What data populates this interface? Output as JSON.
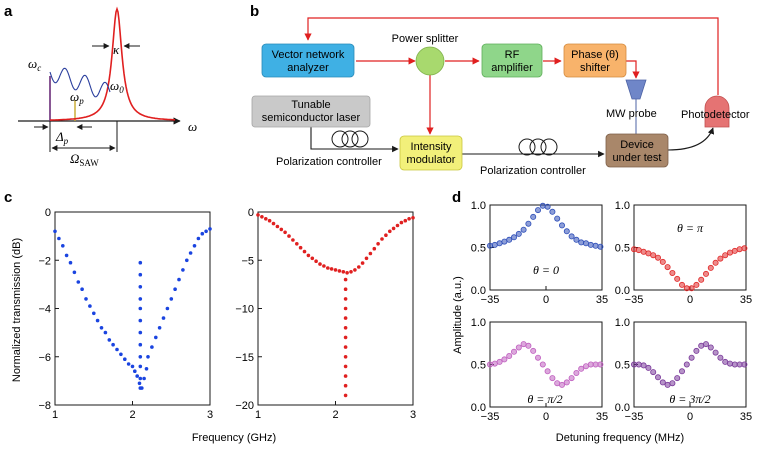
{
  "panels": {
    "a": "a",
    "b": "b",
    "c": "c",
    "d": "d"
  },
  "panel_a": {
    "labels": {
      "kappa": "κ",
      "omega_c": "ω",
      "omega_c_sub": "c",
      "omega_0": "ω",
      "omega_0_sub": "0",
      "omega_p": "ω",
      "omega_p_sub": "p",
      "delta_p": "Δ",
      "delta_p_sub": "p",
      "omega_axis": "ω",
      "omega_saw": "Ω",
      "omega_saw_sub": "SAW"
    },
    "colors": {
      "lorentzian": "#e02020",
      "comb": "#2b3f9e",
      "carrier": "#6a2d7a"
    }
  },
  "panel_b": {
    "vna": "Vector network\nanalyzer",
    "splitter": "Power splitter",
    "rf": "RF\namplifier",
    "phase": "Phase (θ)\nshifter",
    "laser": "Tunable\nsemiconductor laser",
    "pol1": "Polarization controller",
    "modulator": "Intensity\nmodulator",
    "pol2": "Polarization controller",
    "mwprobe": "MW probe",
    "dut": "Device\nunder test",
    "photodetector": "Photodetector",
    "colors": {
      "vna": "#3fb0e4",
      "splitter": "#a8d96e",
      "rf": "#8fd68a",
      "phase": "#f8b36b",
      "laser": "#c9c9c9",
      "modulator": "#f2f07a",
      "dut": "#a9876a",
      "photodetector": "#e57373",
      "probe": "#6f86c8",
      "line_red": "#e02020"
    }
  },
  "panel_c": {
    "ylabel": "Normalized transmission (dB)",
    "xlabel": "Frequency (GHz)"
  },
  "panel_d": {
    "ylabel": "Amplitude (a.u.)",
    "xlabel": "Detuning frequency (MHz)"
  },
  "chart_data": [
    {
      "type": "scatter",
      "id": "c-left",
      "xlim": [
        1,
        3
      ],
      "ylim": [
        -8,
        0
      ],
      "xticks": [
        1,
        2,
        3
      ],
      "yticks": [
        0,
        -2,
        -4,
        -6,
        -8
      ],
      "color": "#1a44e0",
      "series": [
        {
          "x": [
            1.0,
            1.05,
            1.1,
            1.15,
            1.2,
            1.25,
            1.3,
            1.35,
            1.4,
            1.45,
            1.5,
            1.55,
            1.6,
            1.65,
            1.7,
            1.75,
            1.8,
            1.85,
            1.9,
            1.95,
            2.0,
            2.03,
            2.06,
            2.09,
            2.12,
            2.15,
            2.18,
            2.2,
            2.25,
            2.3,
            2.35,
            2.4,
            2.45,
            2.5,
            2.55,
            2.6,
            2.65,
            2.7,
            2.75,
            2.8,
            2.85,
            2.9,
            2.95,
            3.0
          ],
          "y": [
            -0.8,
            -1.1,
            -1.4,
            -1.8,
            -2.1,
            -2.5,
            -2.9,
            -3.2,
            -3.6,
            -3.9,
            -4.2,
            -4.5,
            -4.8,
            -5.0,
            -5.3,
            -5.5,
            -5.7,
            -5.9,
            -6.1,
            -6.3,
            -6.4,
            -6.6,
            -6.8,
            -7.1,
            -7.3,
            -6.9,
            -6.5,
            -6.0,
            -5.6,
            -5.2,
            -4.8,
            -4.4,
            -4.0,
            -3.6,
            -3.2,
            -2.8,
            -2.4,
            -2.0,
            -1.7,
            -1.4,
            -1.1,
            -0.9,
            -0.8,
            -0.7
          ]
        },
        {
          "x": [
            2.1,
            2.1,
            2.1,
            2.1,
            2.1,
            2.1,
            2.1,
            2.1,
            2.1,
            2.1,
            2.1,
            2.1
          ],
          "y": [
            -2.1,
            -2.6,
            -3.1,
            -3.6,
            -4.0,
            -4.5,
            -5.0,
            -5.5,
            -6.0,
            -6.4,
            -6.9,
            -7.3
          ]
        }
      ]
    },
    {
      "type": "scatter",
      "id": "c-right",
      "xlim": [
        1,
        3
      ],
      "ylim": [
        -20,
        0
      ],
      "xticks": [
        1,
        2,
        3
      ],
      "yticks": [
        0,
        -5,
        -10,
        -15,
        -20
      ],
      "color": "#e02020",
      "series": [
        {
          "x": [
            1.0,
            1.05,
            1.1,
            1.15,
            1.2,
            1.25,
            1.3,
            1.35,
            1.4,
            1.45,
            1.5,
            1.55,
            1.6,
            1.65,
            1.7,
            1.75,
            1.8,
            1.85,
            1.9,
            1.95,
            2.0,
            2.05,
            2.1,
            2.15,
            2.2,
            2.25,
            2.3,
            2.35,
            2.4,
            2.45,
            2.5,
            2.55,
            2.6,
            2.65,
            2.7,
            2.75,
            2.8,
            2.85,
            2.9,
            2.95,
            3.0
          ],
          "y": [
            -0.3,
            -0.5,
            -0.7,
            -0.9,
            -1.2,
            -1.5,
            -1.8,
            -2.1,
            -2.5,
            -2.9,
            -3.3,
            -3.7,
            -4.1,
            -4.5,
            -4.8,
            -5.1,
            -5.4,
            -5.6,
            -5.8,
            -5.9,
            -6.0,
            -6.1,
            -6.2,
            -6.3,
            -6.2,
            -6.0,
            -5.7,
            -5.3,
            -4.8,
            -4.3,
            -3.8,
            -3.3,
            -2.8,
            -2.4,
            -2.0,
            -1.7,
            -1.4,
            -1.1,
            -0.9,
            -0.7,
            -0.6
          ]
        },
        {
          "x": [
            2.13,
            2.13,
            2.13,
            2.13,
            2.13,
            2.13,
            2.13,
            2.13,
            2.13,
            2.13,
            2.13,
            2.13,
            2.13
          ],
          "y": [
            -7.0,
            -8.0,
            -9.0,
            -10.0,
            -11.0,
            -12.0,
            -13.0,
            -14.0,
            -15.0,
            -16.0,
            -17.0,
            -18.0,
            -19.0
          ]
        }
      ]
    },
    {
      "type": "scatter",
      "id": "d-1",
      "annotation": "θ = 0",
      "xlim": [
        -35,
        35
      ],
      "ylim": [
        0,
        1.0
      ],
      "xticks": [
        -35,
        0,
        35
      ],
      "yticks": [
        0,
        0.5,
        1.0
      ],
      "color": "#2f4fb8",
      "x": [
        -35,
        -32,
        -29,
        -26,
        -23,
        -20,
        -17,
        -14,
        -11,
        -8,
        -5,
        -2,
        1,
        4,
        7,
        10,
        13,
        16,
        19,
        22,
        25,
        28,
        31,
        34
      ],
      "y": [
        0.52,
        0.53,
        0.55,
        0.57,
        0.59,
        0.62,
        0.66,
        0.71,
        0.78,
        0.86,
        0.94,
        0.99,
        0.98,
        0.92,
        0.84,
        0.76,
        0.69,
        0.63,
        0.59,
        0.56,
        0.55,
        0.53,
        0.52,
        0.51
      ]
    },
    {
      "type": "scatter",
      "id": "d-2",
      "annotation": "θ = π",
      "xlim": [
        -35,
        35
      ],
      "ylim": [
        0,
        1.0
      ],
      "xticks": [
        -35,
        0,
        35
      ],
      "yticks": [
        0,
        0.5,
        1.0
      ],
      "color": "#e02a2a",
      "x": [
        -35,
        -32,
        -29,
        -26,
        -23,
        -20,
        -17,
        -14,
        -11,
        -8,
        -5,
        -2,
        1,
        4,
        7,
        10,
        13,
        16,
        19,
        22,
        25,
        28,
        31,
        34
      ],
      "y": [
        0.48,
        0.47,
        0.45,
        0.43,
        0.41,
        0.38,
        0.33,
        0.27,
        0.2,
        0.13,
        0.06,
        0.02,
        0.02,
        0.06,
        0.12,
        0.19,
        0.26,
        0.32,
        0.37,
        0.41,
        0.44,
        0.46,
        0.48,
        0.49
      ]
    },
    {
      "type": "scatter",
      "id": "d-3",
      "annotation": "θ = π/2",
      "xlim": [
        -35,
        35
      ],
      "ylim": [
        0,
        1.0
      ],
      "xticks": [
        -35,
        0,
        35
      ],
      "yticks": [
        0,
        0.5,
        1.0
      ],
      "color": "#c060c0",
      "x": [
        -35,
        -32,
        -29,
        -26,
        -23,
        -20,
        -17,
        -14,
        -11,
        -8,
        -5,
        -2,
        1,
        4,
        7,
        10,
        13,
        16,
        19,
        22,
        25,
        28,
        31,
        34
      ],
      "y": [
        0.5,
        0.51,
        0.53,
        0.56,
        0.6,
        0.65,
        0.7,
        0.74,
        0.72,
        0.66,
        0.58,
        0.5,
        0.42,
        0.34,
        0.28,
        0.26,
        0.29,
        0.34,
        0.4,
        0.45,
        0.48,
        0.5,
        0.5,
        0.5
      ]
    },
    {
      "type": "scatter",
      "id": "d-4",
      "annotation": "θ = 3π/2",
      "xlim": [
        -35,
        35
      ],
      "ylim": [
        0,
        1.0
      ],
      "xticks": [
        -35,
        0,
        35
      ],
      "yticks": [
        0,
        0.5,
        1.0
      ],
      "color": "#7a3a9a",
      "x": [
        -35,
        -32,
        -29,
        -26,
        -23,
        -20,
        -17,
        -14,
        -11,
        -8,
        -5,
        -2,
        1,
        4,
        7,
        10,
        13,
        16,
        19,
        22,
        25,
        28,
        31,
        34
      ],
      "y": [
        0.5,
        0.5,
        0.49,
        0.46,
        0.41,
        0.35,
        0.29,
        0.26,
        0.28,
        0.34,
        0.42,
        0.5,
        0.58,
        0.66,
        0.72,
        0.74,
        0.7,
        0.64,
        0.58,
        0.53,
        0.51,
        0.5,
        0.5,
        0.5
      ]
    }
  ]
}
